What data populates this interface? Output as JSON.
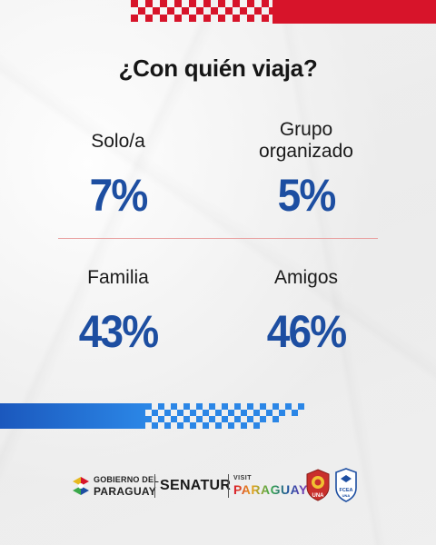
{
  "title": "¿Con quién viaja?",
  "stats": [
    {
      "label": "Solo/a",
      "value": "7%"
    },
    {
      "label": "Grupo organizado",
      "value": "5%"
    },
    {
      "label": "Familia",
      "value": "43%"
    },
    {
      "label": "Amigos",
      "value": "46%"
    }
  ],
  "footer": {
    "gobierno_line1": "GOBIERNO DEL",
    "gobierno_line2": "PARAGUAY",
    "senatur": "SENATUR",
    "visit": "VISIT",
    "paraguay": "PARAGUAY",
    "una_text": "UNA",
    "fcea_text": "FCEA",
    "fcea_sub": "UNA"
  },
  "colors": {
    "stat_blue": "#1d4ea1",
    "red": "#d7142a",
    "blue": "#2a7ce0"
  }
}
